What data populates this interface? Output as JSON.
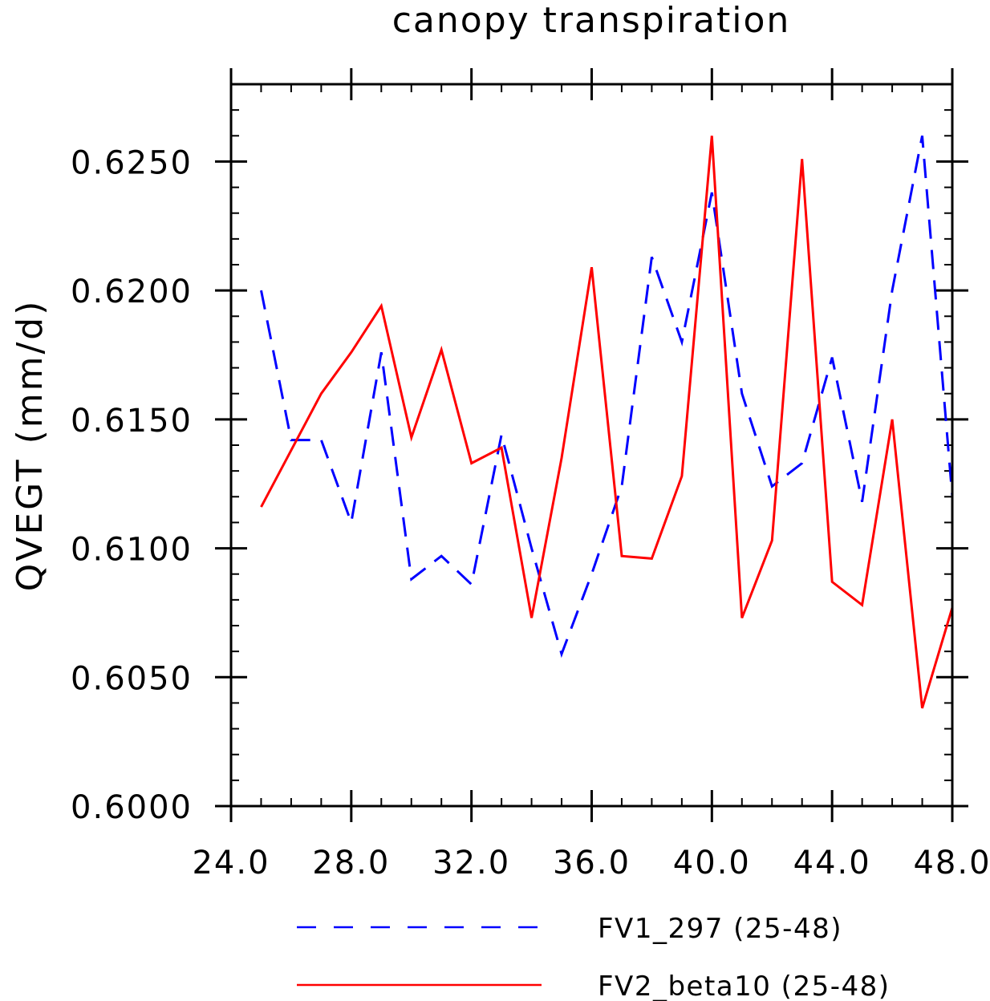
{
  "chart_data": {
    "type": "line",
    "title": "canopy transpiration",
    "xlabel": "",
    "ylabel": "QVEGT (mm/d)",
    "xlim": [
      24.0,
      48.0
    ],
    "ylim": [
      0.6,
      0.628
    ],
    "x_ticks": [
      24.0,
      28.0,
      32.0,
      36.0,
      40.0,
      44.0,
      48.0
    ],
    "x_tick_labels": [
      "24.0",
      "28.0",
      "32.0",
      "36.0",
      "40.0",
      "44.0",
      "48.0"
    ],
    "y_ticks": [
      0.6,
      0.605,
      0.61,
      0.615,
      0.62,
      0.625
    ],
    "y_tick_labels": [
      "0.6000",
      "0.6050",
      "0.6100",
      "0.6150",
      "0.6200",
      "0.6250"
    ],
    "x_minor_step": 1,
    "y_minor_step": 0.001,
    "grid": false,
    "legend_position": "bottom",
    "x": [
      25,
      26,
      27,
      28,
      29,
      30,
      31,
      32,
      33,
      34,
      35,
      36,
      37,
      38,
      39,
      40,
      41,
      42,
      43,
      44,
      45,
      46,
      47,
      48
    ],
    "series": [
      {
        "name": "FV1_297 (25-48)",
        "color": "#0000ff",
        "style": "dashed",
        "values": [
          0.62,
          0.6142,
          0.6142,
          0.611,
          0.6176,
          0.6088,
          0.6097,
          0.6086,
          0.6144,
          0.61,
          0.6059,
          0.609,
          0.6124,
          0.6213,
          0.618,
          0.6238,
          0.616,
          0.6124,
          0.6133,
          0.6174,
          0.6118,
          0.62,
          0.626,
          0.612
        ]
      },
      {
        "name": "FV2_beta10 (25-48)",
        "color": "#ff0000",
        "style": "solid",
        "values": [
          0.6116,
          0.6138,
          0.616,
          0.6176,
          0.6194,
          0.6143,
          0.6177,
          0.6133,
          0.6139,
          0.6073,
          0.6135,
          0.6209,
          0.6097,
          0.6096,
          0.6128,
          0.626,
          0.6073,
          0.6103,
          0.6251,
          0.6087,
          0.6078,
          0.615,
          0.6038,
          0.6077
        ]
      }
    ]
  }
}
